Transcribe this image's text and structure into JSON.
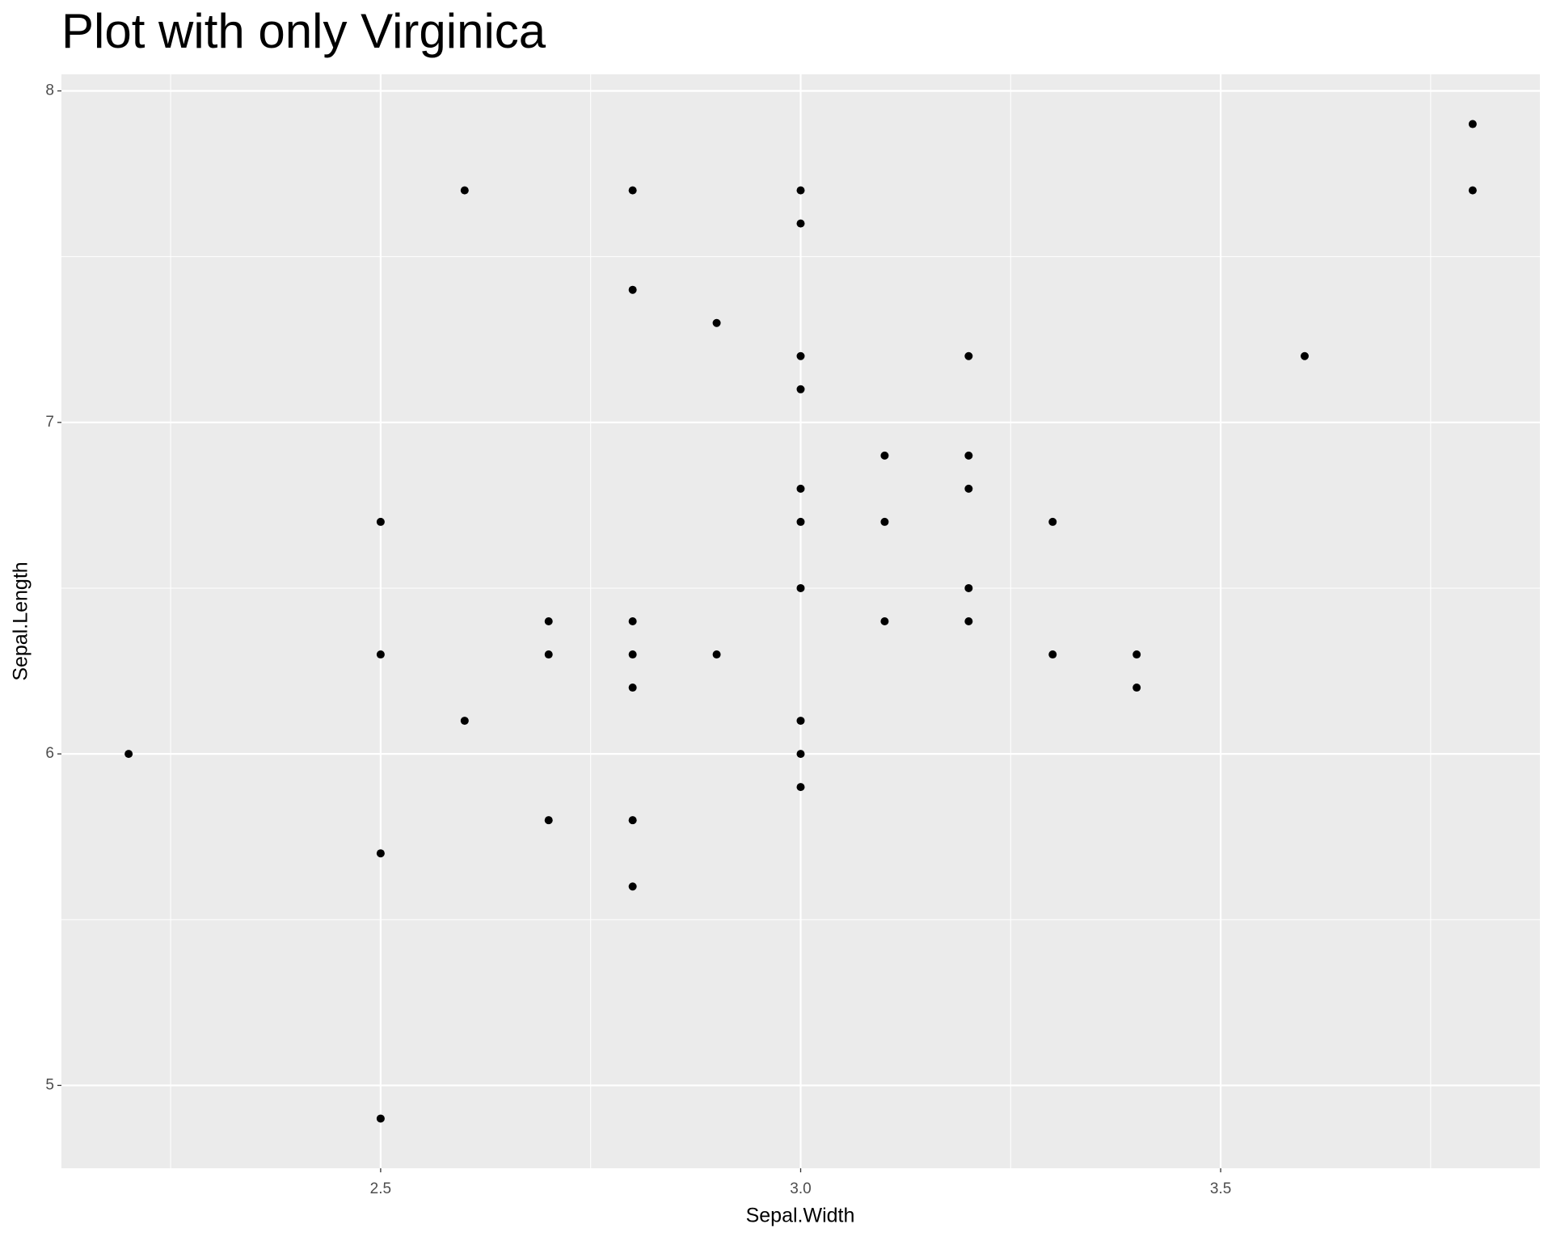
{
  "chart_data": {
    "type": "scatter",
    "title": "Plot with only Virginica",
    "x_label": "Sepal.Width",
    "y_label": "Sepal.Length",
    "x": [
      2.2,
      2.5,
      2.5,
      2.5,
      2.5,
      2.6,
      2.6,
      2.7,
      2.7,
      2.7,
      2.8,
      2.8,
      2.8,
      2.8,
      2.8,
      2.8,
      2.8,
      2.9,
      2.9,
      3.0,
      3.0,
      3.0,
      3.0,
      3.0,
      3.0,
      3.0,
      3.0,
      3.0,
      3.0,
      3.1,
      3.1,
      3.1,
      3.2,
      3.2,
      3.2,
      3.2,
      3.2,
      3.3,
      3.3,
      3.4,
      3.4,
      3.6,
      3.8,
      3.8
    ],
    "y": [
      6.0,
      6.7,
      6.3,
      5.7,
      4.9,
      7.7,
      6.1,
      6.4,
      6.3,
      5.8,
      7.7,
      7.4,
      6.4,
      6.3,
      6.2,
      5.8,
      5.6,
      7.3,
      6.3,
      7.7,
      7.6,
      7.2,
      7.1,
      6.8,
      6.7,
      6.5,
      6.1,
      6.0,
      5.9,
      6.9,
      6.7,
      6.4,
      7.2,
      6.9,
      6.8,
      6.5,
      6.4,
      6.7,
      6.3,
      6.3,
      6.2,
      7.2,
      7.9,
      7.7
    ],
    "color": "#000000",
    "xlim": [
      2.12,
      3.88
    ],
    "ylim": [
      4.75,
      8.05
    ],
    "xticks": [
      {
        "value": 2.5,
        "label": "2.5"
      },
      {
        "value": 3.0,
        "label": "3.0"
      },
      {
        "value": 3.5,
        "label": "3.5"
      }
    ],
    "yticks": [
      5,
      6,
      7,
      8
    ],
    "x_minor_grid": [
      2.25,
      2.75,
      3.25,
      3.75
    ],
    "y_minor_grid": [
      5.5,
      6.5,
      7.5
    ],
    "grid": true
  }
}
